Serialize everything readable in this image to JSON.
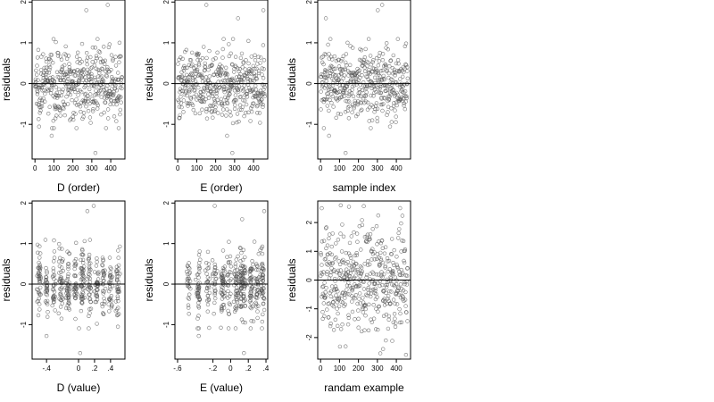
{
  "figure": {
    "background": "#ffffff"
  },
  "chart_data": [
    {
      "type": "scatter",
      "xlabel": "D (order)",
      "ylabel": "residuals",
      "xlim": [
        -15,
        475
      ],
      "ylim": [
        -1.85,
        2.05
      ],
      "xticks": [
        0,
        100,
        200,
        300,
        400
      ],
      "yticks": [
        -1,
        0,
        1,
        2
      ],
      "hline": 0,
      "n_points": 450,
      "x_kind": "index",
      "spread": 0.42,
      "outliers": [
        [
          88,
          -1.28
        ],
        [
          271,
          1.8
        ],
        [
          319,
          -1.7
        ],
        [
          384,
          1.93
        ]
      ],
      "point_color": "#555555"
    },
    {
      "type": "scatter",
      "xlabel": "E (order)",
      "ylabel": "residuals",
      "xlim": [
        -15,
        475
      ],
      "ylim": [
        -1.85,
        2.05
      ],
      "xticks": [
        0,
        100,
        200,
        300,
        400
      ],
      "yticks": [
        -1,
        0,
        1,
        2
      ],
      "hline": 0,
      "n_points": 450,
      "x_kind": "index",
      "spread": 0.42,
      "outliers": [
        [
          151,
          1.93
        ],
        [
          260,
          -1.28
        ],
        [
          318,
          1.6
        ],
        [
          452,
          1.8
        ],
        [
          288,
          -1.7
        ]
      ],
      "point_color": "#555555"
    },
    {
      "type": "scatter",
      "xlabel": "sample index",
      "ylabel": "residuals",
      "xlim": [
        -15,
        475
      ],
      "ylim": [
        -1.85,
        2.05
      ],
      "xticks": [
        0,
        100,
        200,
        300,
        400
      ],
      "yticks": [
        -1,
        0,
        1,
        2
      ],
      "hline": 0,
      "n_points": 450,
      "x_kind": "index",
      "spread": 0.42,
      "outliers": [
        [
          28,
          1.6
        ],
        [
          45,
          -1.28
        ],
        [
          132,
          -1.7
        ],
        [
          302,
          1.8
        ],
        [
          325,
          1.93
        ]
      ],
      "point_color": "#555555"
    },
    {
      "type": "scatter",
      "xlabel": "D (value)",
      "ylabel": "residuals",
      "xlim": [
        -0.58,
        0.58
      ],
      "ylim": [
        -1.85,
        2.05
      ],
      "xticks": [
        -0.4,
        0,
        0.2,
        0.4
      ],
      "hide_tick_labels": [
        -0.2
      ],
      "yticks": [
        -1,
        0,
        1,
        2
      ],
      "hline": 0,
      "n_points": 450,
      "x_kind": "clusters",
      "x_clusters": [
        -0.49,
        -0.4,
        -0.31,
        -0.22,
        -0.13,
        -0.04,
        0.05,
        0.14,
        0.23,
        0.31,
        0.4,
        0.49
      ],
      "spread": 0.42,
      "outliers": [
        [
          0.11,
          1.8
        ],
        [
          0.19,
          1.93
        ],
        [
          0.02,
          -1.7
        ],
        [
          -0.4,
          -1.28
        ]
      ],
      "point_color": "#555555"
    },
    {
      "type": "scatter",
      "xlabel": "E (value)",
      "ylabel": "residuals",
      "xlim": [
        -0.63,
        0.42
      ],
      "ylim": [
        -1.85,
        2.05
      ],
      "xticks": [
        -0.6,
        -0.2,
        0,
        0.2,
        0.4
      ],
      "hide_tick_labels": [
        -0.4
      ],
      "yticks": [
        -1,
        0,
        1,
        2
      ],
      "hline": 0,
      "n_points": 450,
      "x_kind": "clusters",
      "x_clusters": [
        -0.48,
        -0.36,
        -0.26,
        -0.18,
        -0.09,
        -0.02,
        0.06,
        0.12,
        0.15,
        0.23,
        0.3,
        0.36
      ],
      "spread": 0.42,
      "outliers": [
        [
          -0.18,
          1.93
        ],
        [
          0.13,
          1.6
        ],
        [
          0.15,
          -1.7
        ],
        [
          0.38,
          1.8
        ],
        [
          -0.36,
          -1.28
        ]
      ],
      "point_color": "#555555"
    },
    {
      "type": "scatter",
      "xlabel": "randam example",
      "ylabel": "residuals",
      "xlim": [
        -15,
        475
      ],
      "ylim": [
        -2.75,
        2.75
      ],
      "xticks": [
        0,
        100,
        200,
        300,
        400
      ],
      "yticks": [
        -2,
        -1,
        0,
        1,
        2
      ],
      "hline": 0,
      "n_points": 450,
      "x_kind": "index",
      "spread": 1.0,
      "outliers": [
        [
          150,
          2.55
        ],
        [
          330,
          -2.4
        ],
        [
          420,
          2.5
        ]
      ],
      "point_color": "#555555"
    }
  ]
}
